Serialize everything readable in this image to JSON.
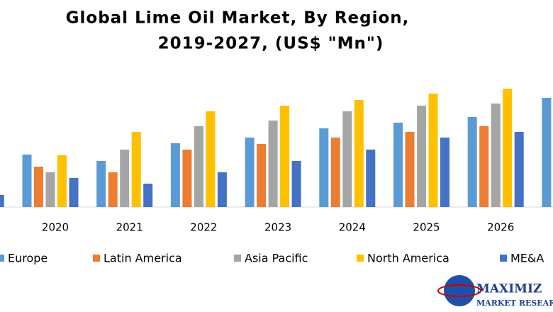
{
  "chart_data": {
    "type": "bar",
    "title": [
      "Global Lime Oil Market, By Region,",
      "2019-2027, (US$ \"Mn\")"
    ],
    "categories": [
      null,
      "2020",
      "2021",
      "2022",
      "2023",
      "2024",
      "2025",
      "2026",
      null
    ],
    "series": [
      {
        "name": "Europe",
        "color": "#5b9bd5",
        "values": [
          null,
          74,
          65,
          90,
          98,
          111,
          119,
          127,
          154
        ]
      },
      {
        "name": "Latin America",
        "color": "#ed7d31",
        "values": [
          null,
          57,
          49,
          81,
          89,
          98,
          106,
          114,
          null
        ]
      },
      {
        "name": "Asia Pacific",
        "color": "#a5a5a5",
        "values": [
          null,
          49,
          81,
          114,
          122,
          135,
          143,
          146,
          null
        ]
      },
      {
        "name": "North America",
        "color": "#ffc000",
        "values": [
          null,
          73,
          106,
          135,
          143,
          151,
          160,
          167,
          null
        ]
      },
      {
        "name": "ME&A",
        "color": "#4472c4",
        "values": [
          17,
          41,
          33,
          49,
          65,
          81,
          98,
          106,
          null
        ]
      }
    ],
    "logo": [
      "MAXIMIZ",
      "MARKET RESEAR"
    ]
  }
}
